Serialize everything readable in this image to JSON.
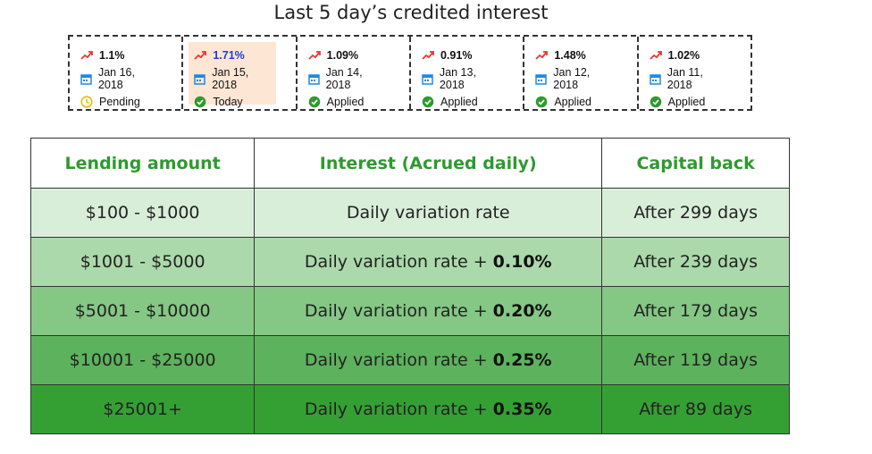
{
  "title": "Last 5 day’s credited interest",
  "colors": {
    "header_text": "#2e9a2e",
    "highlight_bg": "#fde6d4",
    "highlight_rate": "#1e3cdb"
  },
  "cards": [
    {
      "rate": "1.1%",
      "date": "Jan 16, 2018",
      "status": "Pending",
      "status_icon": "clock-icon",
      "highlight": false
    },
    {
      "rate": "1.71%",
      "date": "Jan 15, 2018",
      "status": "Today",
      "status_icon": "check-circle-icon",
      "highlight": true
    },
    {
      "rate": "1.09%",
      "date": "Jan 14, 2018",
      "status": "Applied",
      "status_icon": "check-circle-icon",
      "highlight": false
    },
    {
      "rate": "0.91%",
      "date": "Jan 13, 2018",
      "status": "Applied",
      "status_icon": "check-circle-icon",
      "highlight": false
    },
    {
      "rate": "1.48%",
      "date": "Jan 12, 2018",
      "status": "Applied",
      "status_icon": "check-circle-icon",
      "highlight": false
    },
    {
      "rate": "1.02%",
      "date": "Jan 11, 2018",
      "status": "Applied",
      "status_icon": "check-circle-icon",
      "highlight": false
    }
  ],
  "table": {
    "headers": [
      "Lending amount",
      "Interest (Acrued daily)",
      "Capital back"
    ],
    "rows": [
      {
        "amount": "$100 - $1000",
        "interest": "Daily variation rate",
        "bonus": "",
        "capital": "After 299 days",
        "bg": "#d9eed9"
      },
      {
        "amount": "$1001 - $5000",
        "interest": "Daily variation rate + ",
        "bonus": "0.10%",
        "capital": "After 239 days",
        "bg": "#abd9ab"
      },
      {
        "amount": "$5001 - $10000",
        "interest": "Daily variation rate + ",
        "bonus": "0.20%",
        "capital": "After 179 days",
        "bg": "#85c785"
      },
      {
        "amount": "$10001 - $25000",
        "interest": "Daily variation rate + ",
        "bonus": "0.25%",
        "capital": "After 119 days",
        "bg": "#5db25d"
      },
      {
        "amount": "$25001+",
        "interest": "Daily variation rate + ",
        "bonus": "0.35%",
        "capital": "After 89 days",
        "bg": "#34a034"
      }
    ]
  }
}
